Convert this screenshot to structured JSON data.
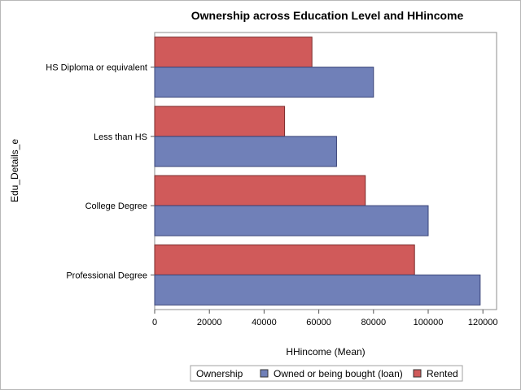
{
  "chart_data": {
    "type": "bar",
    "orientation": "horizontal",
    "title": "Ownership across Education Level and HHincome",
    "xlabel": "HHincome (Mean)",
    "ylabel": "Edu_Details_e",
    "xlim": [
      0,
      125000
    ],
    "x_ticks": [
      0,
      20000,
      40000,
      60000,
      80000,
      100000,
      120000
    ],
    "x_tick_labels": [
      "0",
      "20000",
      "40000",
      "60000",
      "80000",
      "100000",
      "120000"
    ],
    "categories": [
      "HS Diploma or equivalent",
      "Less than HS",
      "College Degree",
      "Professional Degree"
    ],
    "series": [
      {
        "name": "Rented",
        "color": "#d05a5a",
        "values": [
          57500,
          47500,
          77000,
          95000
        ]
      },
      {
        "name": "Owned or being bought (loan)",
        "color": "#7080b8",
        "values": [
          80000,
          66500,
          100000,
          119000
        ]
      }
    ],
    "grid": false,
    "legend": {
      "position": "bottom",
      "title": "Ownership",
      "entries": [
        {
          "label": "Owned or being bought (loan)",
          "color": "#7080b8"
        },
        {
          "label": "Rented",
          "color": "#d05a5a"
        }
      ]
    }
  }
}
